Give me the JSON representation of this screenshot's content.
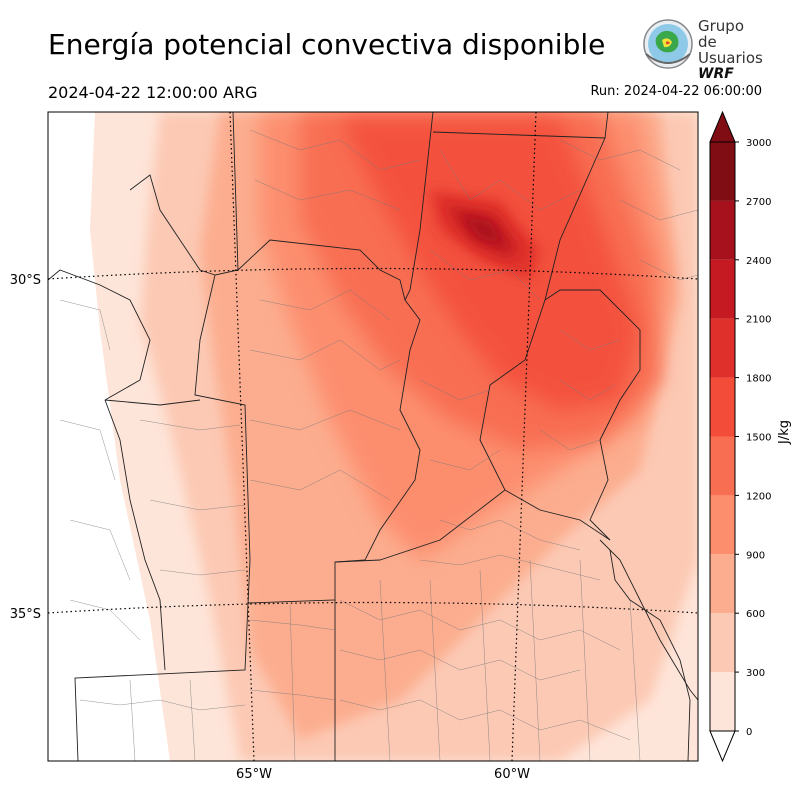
{
  "header": {
    "title": "Energía potencial convectiva disponible",
    "valid_time": "2024-04-22 12:00:00 ARG",
    "run_time": "Run: 2024-04-22 06:00:00"
  },
  "logo": {
    "line1": "Grupo de",
    "line2": "Usuarios",
    "line3": "WRF"
  },
  "map": {
    "lat_labels": [
      "30°S",
      "35°S"
    ],
    "lon_labels": [
      "65°W",
      "60°W"
    ],
    "projection_gridlines": "dotted",
    "field": "CAPE"
  },
  "colorbar": {
    "label": "J/kg",
    "ticks": [
      "0",
      "300",
      "600",
      "900",
      "1200",
      "1500",
      "1800",
      "2100",
      "2400",
      "2700",
      "3000"
    ],
    "colors": [
      "#fee5d9",
      "#fcc9b4",
      "#fcad8f",
      "#fc8e6e",
      "#f86e52",
      "#f34d3a",
      "#e0302b",
      "#c51a21",
      "#a7111d",
      "#800d14"
    ],
    "extend": "both"
  }
}
